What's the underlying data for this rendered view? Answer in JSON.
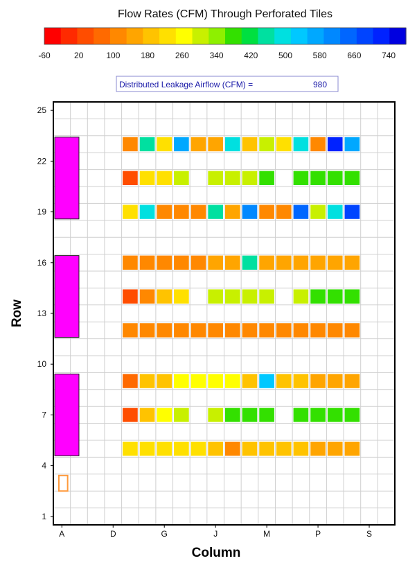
{
  "chart_data": {
    "type": "heatmap",
    "title": "Flow Rates (CFM) Through Perforated Tiles",
    "xlabel": "Column",
    "ylabel": "Row",
    "x_tick_labels": [
      "A",
      "D",
      "G",
      "J",
      "M",
      "P",
      "S"
    ],
    "x_tick_columns": [
      1,
      4,
      7,
      10,
      13,
      16,
      19
    ],
    "y_ticks": [
      1,
      4,
      7,
      10,
      13,
      16,
      19,
      22,
      25
    ],
    "x_range": [
      1,
      20
    ],
    "y_range": [
      1,
      25
    ],
    "grid": true,
    "colorbar": {
      "min": -60,
      "max": 780,
      "tick_labels": [
        "-60",
        "20",
        "100",
        "180",
        "260",
        "340",
        "420",
        "500",
        "580",
        "660",
        "740"
      ],
      "tick_values": [
        -60,
        20,
        100,
        180,
        260,
        340,
        420,
        500,
        580,
        660,
        740
      ],
      "colors": [
        "#ff0000",
        "#ff2a00",
        "#ff4d00",
        "#ff6a00",
        "#ff8800",
        "#ffa500",
        "#ffc300",
        "#ffe000",
        "#ffff00",
        "#c8f000",
        "#8ef000",
        "#33e000",
        "#00e040",
        "#00e0a0",
        "#00e0e0",
        "#00c8ff",
        "#00a8ff",
        "#0088ff",
        "#0066ff",
        "#0044ff",
        "#0022ff",
        "#0000e0"
      ]
    },
    "annotation": {
      "label": "Distributed Leakage Airflow (CFM) =",
      "value": "980"
    },
    "crac_units": [
      {
        "col": 1,
        "row_from": 19,
        "row_to": 23
      },
      {
        "col": 1,
        "row_from": 12,
        "row_to": 16
      },
      {
        "col": 1,
        "row_from": 5,
        "row_to": 9
      }
    ],
    "outlined_tile": {
      "col": 1,
      "row": 3
    },
    "tile_rows": [
      {
        "row": 23,
        "start_col": 5,
        "values": [
          100,
          440,
          220,
          580,
          140,
          140,
          480,
          200,
          320,
          220,
          500,
          100,
          720,
          580
        ]
      },
      {
        "row": 21,
        "start_col": 5,
        "values": [
          20,
          220,
          240,
          290,
          null,
          320,
          320,
          320,
          380,
          null,
          380,
          380,
          380,
          380
        ]
      },
      {
        "row": 19,
        "start_col": 5,
        "values": [
          220,
          500,
          100,
          100,
          100,
          440,
          140,
          620,
          100,
          100,
          660,
          320,
          500,
          700
        ]
      },
      {
        "row": 16,
        "start_col": 5,
        "values": [
          100,
          100,
          100,
          100,
          100,
          140,
          140,
          440,
          140,
          140,
          140,
          140,
          140,
          140
        ]
      },
      {
        "row": 14,
        "start_col": 5,
        "values": [
          20,
          100,
          180,
          240,
          null,
          320,
          320,
          320,
          320,
          null,
          320,
          380,
          380,
          380
        ]
      },
      {
        "row": 12,
        "start_col": 5,
        "values": [
          100,
          100,
          100,
          100,
          100,
          100,
          100,
          100,
          100,
          100,
          100,
          100,
          100,
          100
        ]
      },
      {
        "row": 9,
        "start_col": 5,
        "values": [
          60,
          180,
          200,
          260,
          260,
          260,
          260,
          180,
          520,
          200,
          200,
          140,
          140,
          140
        ]
      },
      {
        "row": 7,
        "start_col": 5,
        "values": [
          20,
          200,
          270,
          320,
          null,
          320,
          380,
          380,
          380,
          null,
          380,
          380,
          380,
          380
        ]
      },
      {
        "row": 5,
        "start_col": 5,
        "values": [
          230,
          230,
          230,
          230,
          220,
          200,
          100,
          180,
          180,
          180,
          180,
          140,
          140,
          140
        ]
      }
    ]
  }
}
